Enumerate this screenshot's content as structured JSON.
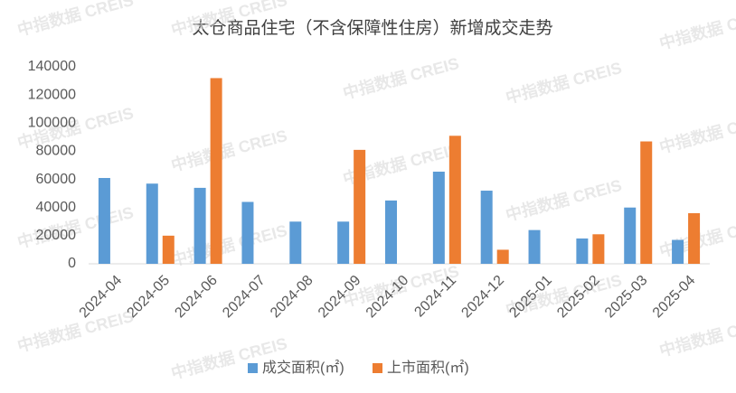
{
  "chart_data": {
    "type": "bar",
    "title": "太仓商品住宅（不含保障性住房）新增成交走势",
    "watermark": "中指数据 CREIS",
    "categories": [
      "2024-04",
      "2024-05",
      "2024-06",
      "2024-07",
      "2024-08",
      "2024-09",
      "2024-10",
      "2024-11",
      "2024-12",
      "2025-01",
      "2025-02",
      "2025-03",
      "2025-04"
    ],
    "series": [
      {
        "name": "成交面积(㎡)",
        "color": "#5b9bd5",
        "values": [
          61000,
          57000,
          54000,
          44000,
          30000,
          30000,
          45000,
          65500,
          52000,
          24000,
          18000,
          40000,
          17000
        ]
      },
      {
        "name": "上市面积(㎡)",
        "color": "#ed7d31",
        "values": [
          null,
          20000,
          132000,
          null,
          null,
          81000,
          null,
          91000,
          10000,
          null,
          21000,
          87000,
          36000
        ]
      }
    ],
    "ylim": [
      0,
      140000
    ],
    "yticks": [
      0,
      20000,
      40000,
      60000,
      80000,
      100000,
      120000,
      140000
    ],
    "grid": false,
    "legend": "bottom"
  }
}
